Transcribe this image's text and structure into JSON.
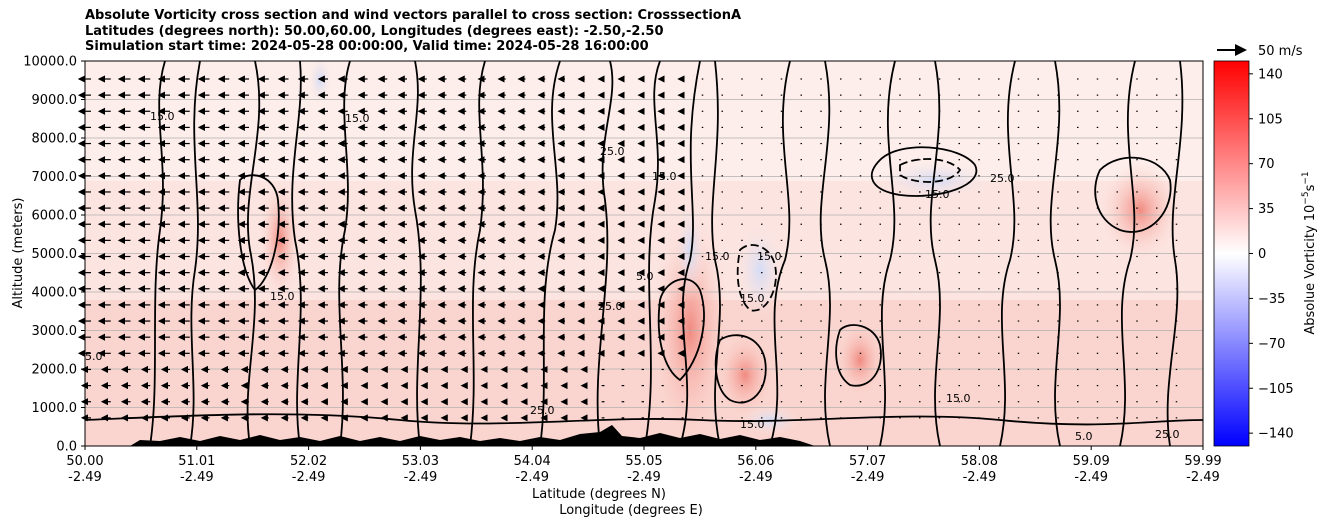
{
  "title_lines": [
    "Absolute Vorticity cross section and wind vectors parallel to cross section: CrosssectionA",
    "Latitudes (degrees north): 50.00,60.00, Longitudes (degrees east): -2.50,-2.50",
    "Simulation start time: 2024-05-28 00:00:00, Valid time: 2024-05-28 16:00:00"
  ],
  "chart_data": {
    "type": "heatmap",
    "ylabel": "Altitude (meters)",
    "xlabel_lines": [
      "Latitude (degrees N)",
      "Longitude (degrees E)"
    ],
    "ylim": [
      0,
      10000
    ],
    "y_ticks": [
      "0.0",
      "1000.0",
      "2000.0",
      "3000.0",
      "4000.0",
      "5000.0",
      "6000.0",
      "7000.0",
      "8000.0",
      "9000.0",
      "10000.0"
    ],
    "y_tick_values": [
      0,
      1000,
      2000,
      3000,
      4000,
      5000,
      6000,
      7000,
      8000,
      9000,
      10000
    ],
    "x_ticks_lat": [
      "50.00",
      "51.01",
      "52.02",
      "53.03",
      "54.04",
      "55.05",
      "56.06",
      "57.07",
      "58.08",
      "59.09",
      "59.99"
    ],
    "x_ticks_lon": [
      "-2.49",
      "-2.49",
      "-2.49",
      "-2.49",
      "-2.49",
      "-2.49",
      "-2.49",
      "-2.49",
      "-2.49",
      "-2.49",
      "-2.49"
    ],
    "xlim": [
      50.0,
      59.99
    ],
    "grid": "horizontal",
    "colorbar": {
      "label": "Absolue Vorticity 10",
      "label_exp": "−5",
      "label_unit": "s",
      "label_unit_exp": "−1",
      "ticks": [
        "−140",
        "−105",
        "−70",
        "−35",
        "0",
        "35",
        "70",
        "105",
        "140"
      ],
      "tick_values": [
        -140,
        -105,
        -70,
        -35,
        0,
        35,
        70,
        105,
        140
      ],
      "range": [
        -150,
        150
      ],
      "colormap": "bwr",
      "colors": {
        "min": "#0000ff",
        "mid": "#ffffff",
        "max": "#ff0000"
      }
    },
    "wind_key": "50 m/s",
    "contour_labels": [
      "5.0",
      "15.0",
      "25.0"
    ]
  }
}
